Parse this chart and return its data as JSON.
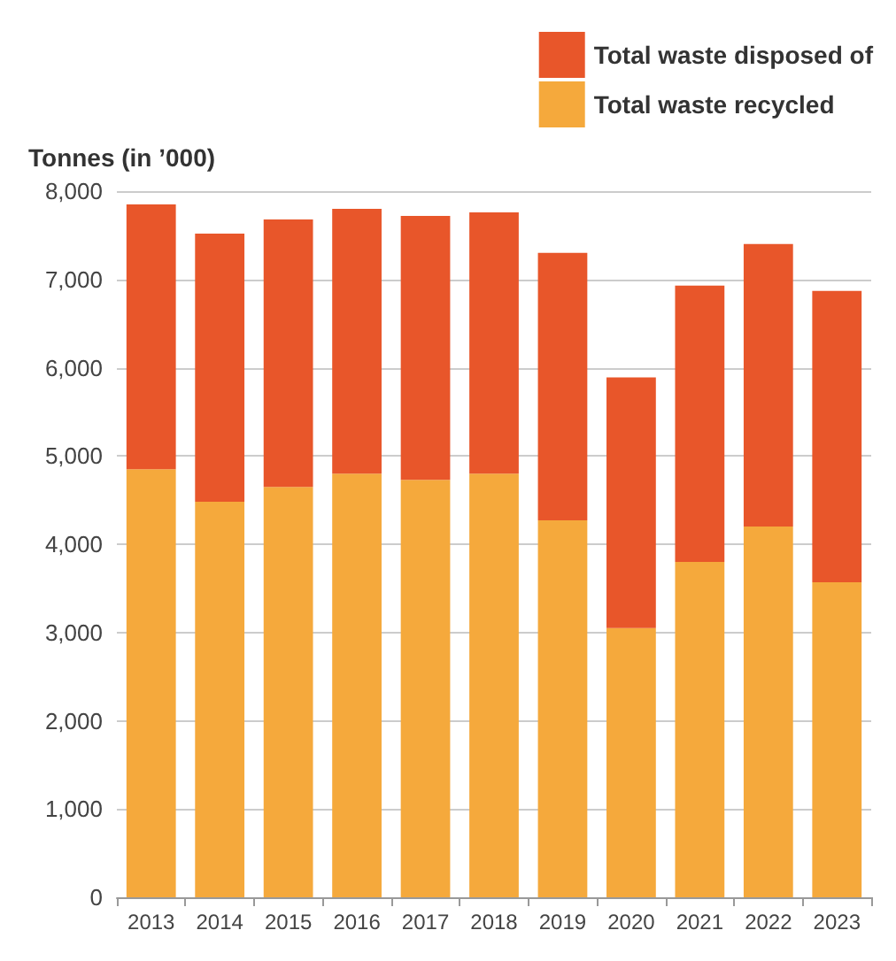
{
  "chart_data": {
    "type": "bar",
    "stacked": true,
    "ylabel": "Tonnes (in ’000)",
    "categories": [
      "2013",
      "2014",
      "2015",
      "2016",
      "2017",
      "2018",
      "2019",
      "2020",
      "2021",
      "2022",
      "2023"
    ],
    "series": [
      {
        "name": "Total waste recycled",
        "color": "#f5a93c",
        "values": [
          4850,
          4480,
          4650,
          4800,
          4730,
          4800,
          4270,
          3050,
          3800,
          4200,
          3570
        ]
      },
      {
        "name": "Total waste disposed of",
        "color": "#e8562a",
        "values": [
          3000,
          3040,
          3030,
          3000,
          2990,
          2960,
          3030,
          2840,
          3130,
          3200,
          3300
        ]
      }
    ],
    "ylim": [
      0,
      8000
    ],
    "yticks": [
      0,
      {
        "value": 1000,
        "label": "1,000"
      },
      {
        "value": 2000,
        "label": "2,000"
      },
      {
        "value": 3000,
        "label": "3,000"
      },
      {
        "value": 4000,
        "label": "4,000"
      },
      {
        "value": 5000,
        "label": "5,000"
      },
      {
        "value": 6000,
        "label": "6,000"
      },
      {
        "value": 7000,
        "label": "7,000"
      },
      {
        "value": 8000,
        "label": "8,000"
      }
    ],
    "grid": "y",
    "legend": "top right"
  }
}
